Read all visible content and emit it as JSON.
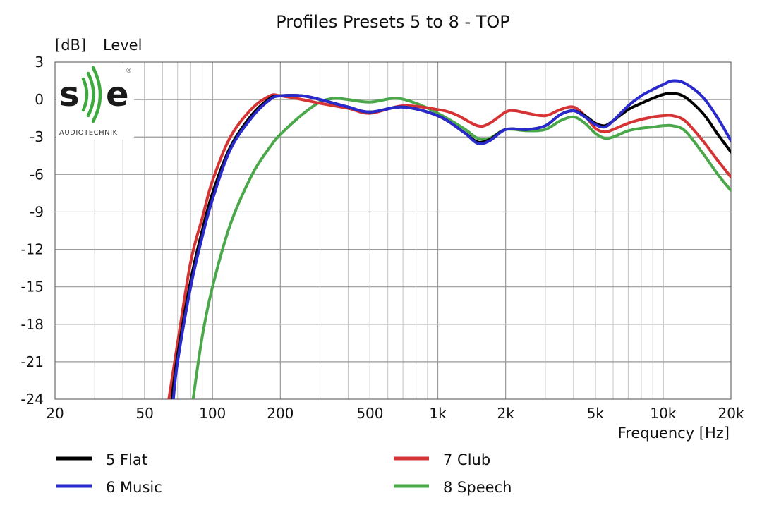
{
  "chart_data": {
    "type": "line",
    "title": "Profiles Presets 5 to 8 - TOP",
    "ylabel_unit": "[dB]",
    "ylabel": "Level",
    "xlabel": "Frequency [Hz]",
    "x_scale": "log",
    "xlim": [
      20,
      20000
    ],
    "ylim": [
      -24,
      3
    ],
    "grid": true,
    "legend_position": "bottom",
    "x_ticks": [
      {
        "value": 20,
        "label": "20"
      },
      {
        "value": 50,
        "label": "50"
      },
      {
        "value": 100,
        "label": "100"
      },
      {
        "value": 200,
        "label": "200"
      },
      {
        "value": 500,
        "label": "500"
      },
      {
        "value": 1000,
        "label": "1k"
      },
      {
        "value": 2000,
        "label": "2k"
      },
      {
        "value": 5000,
        "label": "5k"
      },
      {
        "value": 10000,
        "label": "10k"
      },
      {
        "value": 20000,
        "label": "20k"
      }
    ],
    "y_ticks": [
      {
        "value": 3,
        "label": "3"
      },
      {
        "value": 0,
        "label": "0"
      },
      {
        "value": -3,
        "label": "-3"
      },
      {
        "value": -6,
        "label": "-6"
      },
      {
        "value": -9,
        "label": "-9"
      },
      {
        "value": -12,
        "label": "-12"
      },
      {
        "value": -15,
        "label": "-15"
      },
      {
        "value": -18,
        "label": "-18"
      },
      {
        "value": -21,
        "label": "-21"
      },
      {
        "value": -24,
        "label": "-24"
      }
    ],
    "series": [
      {
        "name": "5 Flat",
        "color": "#000000",
        "points": [
          [
            66,
            -24
          ],
          [
            70,
            -20.5
          ],
          [
            80,
            -14.5
          ],
          [
            90,
            -10.5
          ],
          [
            100,
            -7.5
          ],
          [
            120,
            -3.8
          ],
          [
            150,
            -1.2
          ],
          [
            180,
            0.1
          ],
          [
            200,
            0.3
          ],
          [
            250,
            0.3
          ],
          [
            300,
            0
          ],
          [
            400,
            -0.6
          ],
          [
            500,
            -1.0
          ],
          [
            700,
            -0.6
          ],
          [
            1000,
            -1.3
          ],
          [
            1300,
            -2.6
          ],
          [
            1500,
            -3.4
          ],
          [
            1700,
            -3.2
          ],
          [
            2000,
            -2.4
          ],
          [
            2500,
            -2.4
          ],
          [
            3000,
            -2.1
          ],
          [
            3500,
            -1.2
          ],
          [
            4000,
            -0.9
          ],
          [
            4500,
            -1.3
          ],
          [
            5000,
            -1.9
          ],
          [
            5500,
            -2.1
          ],
          [
            6000,
            -1.7
          ],
          [
            7000,
            -0.8
          ],
          [
            8000,
            -0.3
          ],
          [
            9000,
            0.1
          ],
          [
            10000,
            0.4
          ],
          [
            11000,
            0.5
          ],
          [
            12500,
            0.2
          ],
          [
            15000,
            -1.1
          ],
          [
            17500,
            -2.8
          ],
          [
            20000,
            -4.2
          ]
        ]
      },
      {
        "name": "6 Music",
        "color": "#2a2acc",
        "points": [
          [
            67,
            -24
          ],
          [
            70,
            -21
          ],
          [
            80,
            -15
          ],
          [
            90,
            -11
          ],
          [
            100,
            -8
          ],
          [
            120,
            -4
          ],
          [
            150,
            -1.4
          ],
          [
            180,
            0
          ],
          [
            200,
            0.3
          ],
          [
            250,
            0.3
          ],
          [
            300,
            0
          ],
          [
            400,
            -0.6
          ],
          [
            500,
            -1.0
          ],
          [
            700,
            -0.6
          ],
          [
            1000,
            -1.3
          ],
          [
            1300,
            -2.6
          ],
          [
            1500,
            -3.5
          ],
          [
            1700,
            -3.3
          ],
          [
            2000,
            -2.4
          ],
          [
            2500,
            -2.4
          ],
          [
            3000,
            -2.1
          ],
          [
            3500,
            -1.2
          ],
          [
            4000,
            -0.9
          ],
          [
            4500,
            -1.4
          ],
          [
            5000,
            -2.0
          ],
          [
            5500,
            -2.2
          ],
          [
            6000,
            -1.7
          ],
          [
            7000,
            -0.5
          ],
          [
            8000,
            0.3
          ],
          [
            9000,
            0.8
          ],
          [
            10000,
            1.2
          ],
          [
            11000,
            1.5
          ],
          [
            12500,
            1.3
          ],
          [
            15000,
            0.2
          ],
          [
            17500,
            -1.5
          ],
          [
            20000,
            -3.3
          ]
        ]
      },
      {
        "name": "7 Club",
        "color": "#d63434",
        "points": [
          [
            64,
            -24
          ],
          [
            70,
            -19.5
          ],
          [
            80,
            -13
          ],
          [
            90,
            -9.5
          ],
          [
            100,
            -6.5
          ],
          [
            120,
            -3
          ],
          [
            150,
            -0.7
          ],
          [
            180,
            0.3
          ],
          [
            200,
            0.3
          ],
          [
            250,
            0
          ],
          [
            300,
            -0.3
          ],
          [
            400,
            -0.7
          ],
          [
            500,
            -1.1
          ],
          [
            700,
            -0.5
          ],
          [
            1000,
            -0.8
          ],
          [
            1200,
            -1.2
          ],
          [
            1500,
            -2.1
          ],
          [
            1700,
            -1.9
          ],
          [
            2000,
            -1.0
          ],
          [
            2200,
            -0.9
          ],
          [
            2500,
            -1.1
          ],
          [
            3000,
            -1.3
          ],
          [
            3500,
            -0.8
          ],
          [
            4000,
            -0.6
          ],
          [
            4500,
            -1.3
          ],
          [
            5000,
            -2.3
          ],
          [
            5500,
            -2.6
          ],
          [
            6000,
            -2.4
          ],
          [
            7000,
            -1.9
          ],
          [
            8000,
            -1.6
          ],
          [
            9000,
            -1.4
          ],
          [
            10000,
            -1.3
          ],
          [
            11000,
            -1.3
          ],
          [
            12500,
            -1.7
          ],
          [
            15000,
            -3.3
          ],
          [
            17500,
            -4.9
          ],
          [
            20000,
            -6.2
          ]
        ]
      },
      {
        "name": "8 Speech",
        "color": "#4aa84a",
        "points": [
          [
            82,
            -24
          ],
          [
            90,
            -19
          ],
          [
            100,
            -15
          ],
          [
            120,
            -10
          ],
          [
            150,
            -6
          ],
          [
            180,
            -3.8
          ],
          [
            200,
            -2.8
          ],
          [
            250,
            -1.2
          ],
          [
            300,
            -0.2
          ],
          [
            350,
            0.1
          ],
          [
            400,
            0
          ],
          [
            500,
            -0.2
          ],
          [
            650,
            0.1
          ],
          [
            800,
            -0.3
          ],
          [
            1000,
            -1.1
          ],
          [
            1300,
            -2.3
          ],
          [
            1500,
            -3.1
          ],
          [
            1700,
            -3.1
          ],
          [
            2000,
            -2.4
          ],
          [
            2500,
            -2.5
          ],
          [
            3000,
            -2.4
          ],
          [
            3500,
            -1.7
          ],
          [
            4000,
            -1.4
          ],
          [
            4500,
            -1.9
          ],
          [
            5000,
            -2.7
          ],
          [
            5500,
            -3.1
          ],
          [
            6000,
            -3.0
          ],
          [
            7000,
            -2.5
          ],
          [
            8000,
            -2.3
          ],
          [
            9000,
            -2.2
          ],
          [
            10000,
            -2.1
          ],
          [
            11000,
            -2.1
          ],
          [
            12500,
            -2.5
          ],
          [
            15000,
            -4.3
          ],
          [
            17500,
            -6.0
          ],
          [
            20000,
            -7.3
          ]
        ]
      }
    ]
  },
  "logo": {
    "mark": "se",
    "registered": "®",
    "text": "AUDIOTECHNIK"
  }
}
